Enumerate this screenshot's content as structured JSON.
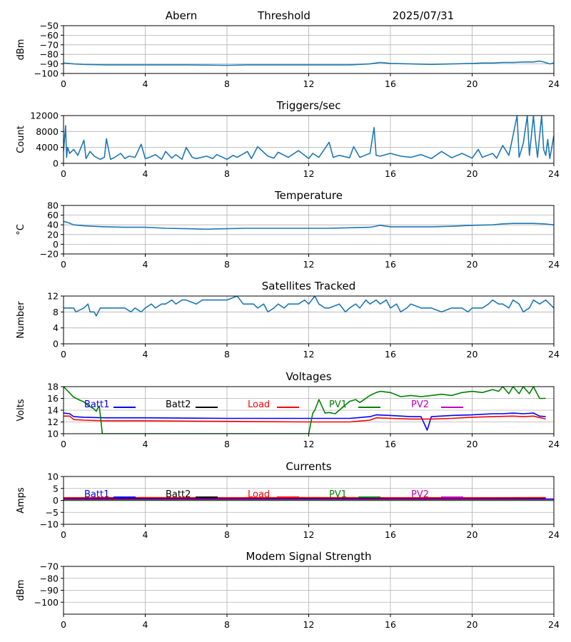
{
  "header": {
    "site": "Abern",
    "mode": "Threshold",
    "date": "2025/07/31"
  },
  "x_ticks": [
    "0",
    "4",
    "8",
    "12",
    "16",
    "20",
    "24"
  ],
  "chart_data": [
    {
      "type": "line",
      "id": "signal",
      "title": "",
      "ylabel": "dBm",
      "xlim": [
        0,
        24
      ],
      "ylim": [
        -100,
        -50
      ],
      "yticks": [
        "−100",
        "−90",
        "−80",
        "−70",
        "−60",
        "−50"
      ],
      "grid": true,
      "series": [
        {
          "color": "#1f77b4",
          "x": [
            0,
            0.5,
            1,
            2,
            3,
            4,
            5,
            6,
            7,
            8,
            9,
            10,
            11,
            12,
            13,
            14,
            15,
            15.5,
            16,
            17,
            18,
            19,
            20,
            20.5,
            21,
            21.5,
            22,
            22.5,
            23,
            23.3,
            23.5,
            23.8,
            24
          ],
          "y": [
            -89,
            -90,
            -90.5,
            -91,
            -91,
            -91,
            -91,
            -91,
            -91.2,
            -91.5,
            -91,
            -91,
            -91,
            -91,
            -91,
            -91,
            -90,
            -88.5,
            -89.5,
            -90,
            -90.5,
            -90,
            -89.5,
            -89,
            -89,
            -88.5,
            -88.5,
            -88,
            -88,
            -87,
            -88,
            -90,
            -89
          ]
        }
      ]
    },
    {
      "type": "line",
      "id": "triggers",
      "title": "Triggers/sec",
      "ylabel": "Count",
      "xlim": [
        0,
        24
      ],
      "ylim": [
        0,
        12000
      ],
      "yticks": [
        "0",
        "4000",
        "8000",
        "12000"
      ],
      "grid": true,
      "series": [
        {
          "color": "#1f77b4",
          "x": [
            0,
            0.1,
            0.15,
            0.2,
            0.3,
            0.5,
            0.7,
            1,
            1.1,
            1.3,
            1.5,
            1.8,
            2,
            2.1,
            2.3,
            2.5,
            2.8,
            3,
            3.2,
            3.5,
            3.8,
            4,
            4.2,
            4.5,
            4.8,
            5,
            5.3,
            5.5,
            5.8,
            6,
            6.3,
            6.5,
            7,
            7.3,
            7.5,
            8,
            8.3,
            8.5,
            9,
            9.2,
            9.5,
            10,
            10.3,
            10.5,
            11,
            11.5,
            12,
            12.2,
            12.5,
            13,
            13.2,
            13.5,
            14,
            14.2,
            14.5,
            15,
            15.2,
            15.3,
            15.5,
            16,
            16.5,
            17,
            17.5,
            18,
            18.5,
            19,
            19.5,
            20,
            20.3,
            20.5,
            21,
            21.2,
            21.5,
            21.8,
            22,
            22.2,
            22.3,
            22.5,
            22.7,
            22.8,
            23,
            23.1,
            23.2,
            23.4,
            23.5,
            23.6,
            23.7,
            23.8,
            24
          ],
          "y": [
            3000,
            9500,
            1500,
            4000,
            2500,
            3500,
            2000,
            5800,
            1200,
            3000,
            1800,
            1000,
            1500,
            6200,
            1000,
            1500,
            2500,
            1200,
            1800,
            1500,
            4800,
            1200,
            1500,
            2200,
            1000,
            3000,
            1300,
            2200,
            1000,
            4000,
            1500,
            1200,
            1800,
            1200,
            2200,
            1000,
            2000,
            1500,
            3000,
            1200,
            4200,
            1800,
            1300,
            2800,
            1500,
            3200,
            1200,
            2500,
            1500,
            5300,
            1500,
            2000,
            1400,
            4200,
            1500,
            2500,
            9000,
            2000,
            1800,
            2500,
            1800,
            1500,
            2200,
            1200,
            3000,
            1400,
            2500,
            1300,
            3500,
            1500,
            2500,
            1300,
            4500,
            2000,
            7000,
            12000,
            1500,
            5000,
            12000,
            2000,
            12000,
            6000,
            1500,
            12000,
            3500,
            2000,
            6000,
            1200,
            7000
          ]
        }
      ]
    },
    {
      "type": "line",
      "id": "temperature",
      "title": "Temperature",
      "ylabel": "°C",
      "xlim": [
        0,
        24
      ],
      "ylim": [
        -20,
        80
      ],
      "yticks": [
        "−20",
        "0",
        "20",
        "40",
        "60",
        "80"
      ],
      "grid": true,
      "series": [
        {
          "color": "#1f77b4",
          "x": [
            0,
            0.2,
            0.5,
            1,
            2,
            3,
            4,
            5,
            6,
            7,
            8,
            9,
            10,
            11,
            12,
            13,
            14,
            15,
            15.5,
            16,
            17,
            18,
            19,
            20,
            21,
            21.5,
            22,
            23,
            23.5,
            24
          ],
          "y": [
            47,
            45,
            40,
            38,
            36,
            35,
            35,
            33,
            32,
            31,
            32,
            33,
            33,
            33,
            33,
            33,
            34,
            35,
            39,
            36,
            36,
            36,
            37,
            39,
            40,
            42,
            43,
            43,
            42,
            40
          ]
        }
      ]
    },
    {
      "type": "line",
      "id": "satellites",
      "title": "Satellites Tracked",
      "ylabel": "Number",
      "xlim": [
        0,
        24
      ],
      "ylim": [
        0,
        12
      ],
      "yticks": [
        "0",
        "4",
        "8",
        "12"
      ],
      "grid": true,
      "series": [
        {
          "color": "#1f77b4",
          "x": [
            0,
            0.5,
            0.6,
            1,
            1.2,
            1.3,
            1.5,
            1.6,
            1.8,
            2,
            2.5,
            2.8,
            3,
            3.3,
            3.5,
            3.8,
            4,
            4.3,
            4.5,
            4.8,
            5,
            5.3,
            5.5,
            5.8,
            6,
            6.5,
            6.8,
            7,
            7.5,
            7.8,
            8,
            8.5,
            8.8,
            9,
            9.3,
            9.5,
            9.8,
            10,
            10.3,
            10.5,
            10.8,
            11,
            11.5,
            11.8,
            12,
            12.3,
            12.5,
            12.8,
            13,
            13.5,
            13.8,
            14,
            14.3,
            14.5,
            14.8,
            15,
            15.3,
            15.5,
            15.8,
            16,
            16.3,
            16.5,
            16.8,
            17,
            17.5,
            17.8,
            18,
            18.5,
            19,
            19.5,
            19.8,
            20,
            20.5,
            20.8,
            21,
            21.3,
            21.5,
            21.8,
            22,
            22.3,
            22.5,
            22.8,
            23,
            23.3,
            23.6,
            24
          ],
          "y": [
            9,
            9,
            8,
            9,
            10,
            8,
            8,
            7,
            9,
            9,
            9,
            9,
            9,
            8,
            9,
            8,
            9,
            10,
            9,
            10,
            10,
            11,
            10,
            11,
            11,
            10,
            11,
            11,
            11,
            11,
            11,
            12,
            10,
            10,
            10,
            9,
            10,
            8,
            9,
            10,
            9,
            10,
            10,
            11,
            10,
            12,
            10,
            9,
            9,
            10,
            8,
            9,
            10,
            9,
            11,
            10,
            11,
            10,
            11,
            9,
            10,
            8,
            9,
            10,
            9,
            9,
            9,
            8,
            9,
            9,
            8,
            9,
            9,
            10,
            11,
            10,
            10,
            9,
            11,
            10,
            8,
            9,
            11,
            10,
            11,
            9
          ]
        }
      ]
    },
    {
      "type": "line",
      "id": "voltages",
      "title": "Voltages",
      "ylabel": "Volts",
      "xlim": [
        0,
        24
      ],
      "ylim": [
        10,
        18
      ],
      "yticks": [
        "10",
        "12",
        "14",
        "16",
        "18"
      ],
      "grid": true,
      "legend": "top",
      "series": [
        {
          "name": "Batt1",
          "color": "#0000ff",
          "x": [
            0,
            0.3,
            0.5,
            1,
            2,
            4,
            8,
            12,
            14,
            15,
            15.3,
            16,
            17,
            17.5,
            17.8,
            18,
            19,
            20,
            21,
            21.5,
            22,
            22.5,
            23,
            23.3,
            23.6
          ],
          "y": [
            13.5,
            13.4,
            12.9,
            12.8,
            12.7,
            12.7,
            12.6,
            12.6,
            12.6,
            12.9,
            13.2,
            13.1,
            12.9,
            12.9,
            10.6,
            12.9,
            13.1,
            13.2,
            13.4,
            13.4,
            13.5,
            13.4,
            13.5,
            13,
            12.9
          ]
        },
        {
          "name": "Batt2",
          "color": "#000000",
          "x": [],
          "y": []
        },
        {
          "name": "Load",
          "color": "#ff0000",
          "x": [
            0,
            0.3,
            0.5,
            1,
            2,
            4,
            8,
            12,
            14,
            15,
            15.3,
            16,
            17,
            18,
            19,
            20,
            21,
            22,
            22.5,
            23,
            23.6
          ],
          "y": [
            13,
            13,
            12.4,
            12.3,
            12.2,
            12.2,
            12.1,
            12,
            12,
            12.3,
            12.7,
            12.6,
            12.5,
            12.5,
            12.6,
            12.8,
            12.9,
            13,
            12.9,
            13,
            12.5
          ]
        },
        {
          "name": "PV1",
          "color": "#008000",
          "x": [
            0,
            0.2,
            0.5,
            0.8,
            1,
            1.2,
            1.5,
            1.6,
            1.7,
            1.75,
            1.9,
            12,
            12.2,
            12.3,
            12.5,
            12.8,
            13,
            13.3,
            13.5,
            14,
            14.3,
            14.5,
            15,
            15.3,
            15.5,
            16,
            16.5,
            17,
            17.5,
            18,
            18.5,
            19,
            19.5,
            20,
            20.5,
            21,
            21.3,
            21.5,
            21.8,
            22,
            22.3,
            22.5,
            22.8,
            23,
            23.3,
            23.6
          ],
          "y": [
            18,
            17.3,
            16.2,
            15.7,
            15.4,
            14.8,
            14.2,
            13.8,
            14.5,
            14.7,
            10,
            10,
            13.5,
            14,
            15.8,
            13.5,
            13.6,
            13.4,
            14,
            15.5,
            15.8,
            15.3,
            16.5,
            17,
            17.2,
            17,
            16.3,
            16.5,
            16.3,
            16.5,
            16.7,
            16.5,
            17,
            17.2,
            17,
            17.5,
            17.2,
            18,
            16.8,
            18,
            16.8,
            18,
            16.8,
            18,
            16,
            16
          ]
        },
        {
          "name": "PV2",
          "color": "#bf00bf",
          "x": [],
          "y": []
        }
      ]
    },
    {
      "type": "line",
      "id": "currents",
      "title": "Currents",
      "ylabel": "Amps",
      "xlim": [
        0,
        24
      ],
      "ylim": [
        -10,
        10
      ],
      "yticks": [
        "−10",
        "−5",
        "0",
        "5",
        "10"
      ],
      "grid": true,
      "legend": "top",
      "series": [
        {
          "name": "Batt1",
          "color": "#0000ff",
          "x": [
            0,
            24
          ],
          "y": [
            0.6,
            0.6
          ]
        },
        {
          "name": "Batt2",
          "color": "#000000",
          "x": [
            0,
            23.6
          ],
          "y": [
            0.9,
            0.9
          ]
        },
        {
          "name": "Load",
          "color": "#ff0000",
          "x": [
            0,
            4,
            8,
            12,
            16,
            20,
            23.6
          ],
          "y": [
            1.1,
            1.2,
            1.1,
            1.2,
            1.1,
            1.1,
            1.2
          ]
        },
        {
          "name": "PV1",
          "color": "#008000",
          "x": [
            0,
            24
          ],
          "y": [
            0,
            0
          ]
        },
        {
          "name": "PV2",
          "color": "#bf00bf",
          "x": [
            0,
            24
          ],
          "y": [
            0.3,
            0.3
          ]
        }
      ]
    },
    {
      "type": "line",
      "id": "modem",
      "title": "Modem Signal Strength",
      "ylabel": "dBm",
      "xlim": [
        0,
        24
      ],
      "ylim": [
        -110,
        -70
      ],
      "yticks": [
        "−100",
        "−90",
        "−80",
        "−70"
      ],
      "ytick_values": [
        -100,
        -90,
        -80,
        -70
      ],
      "grid": true,
      "series": []
    }
  ]
}
